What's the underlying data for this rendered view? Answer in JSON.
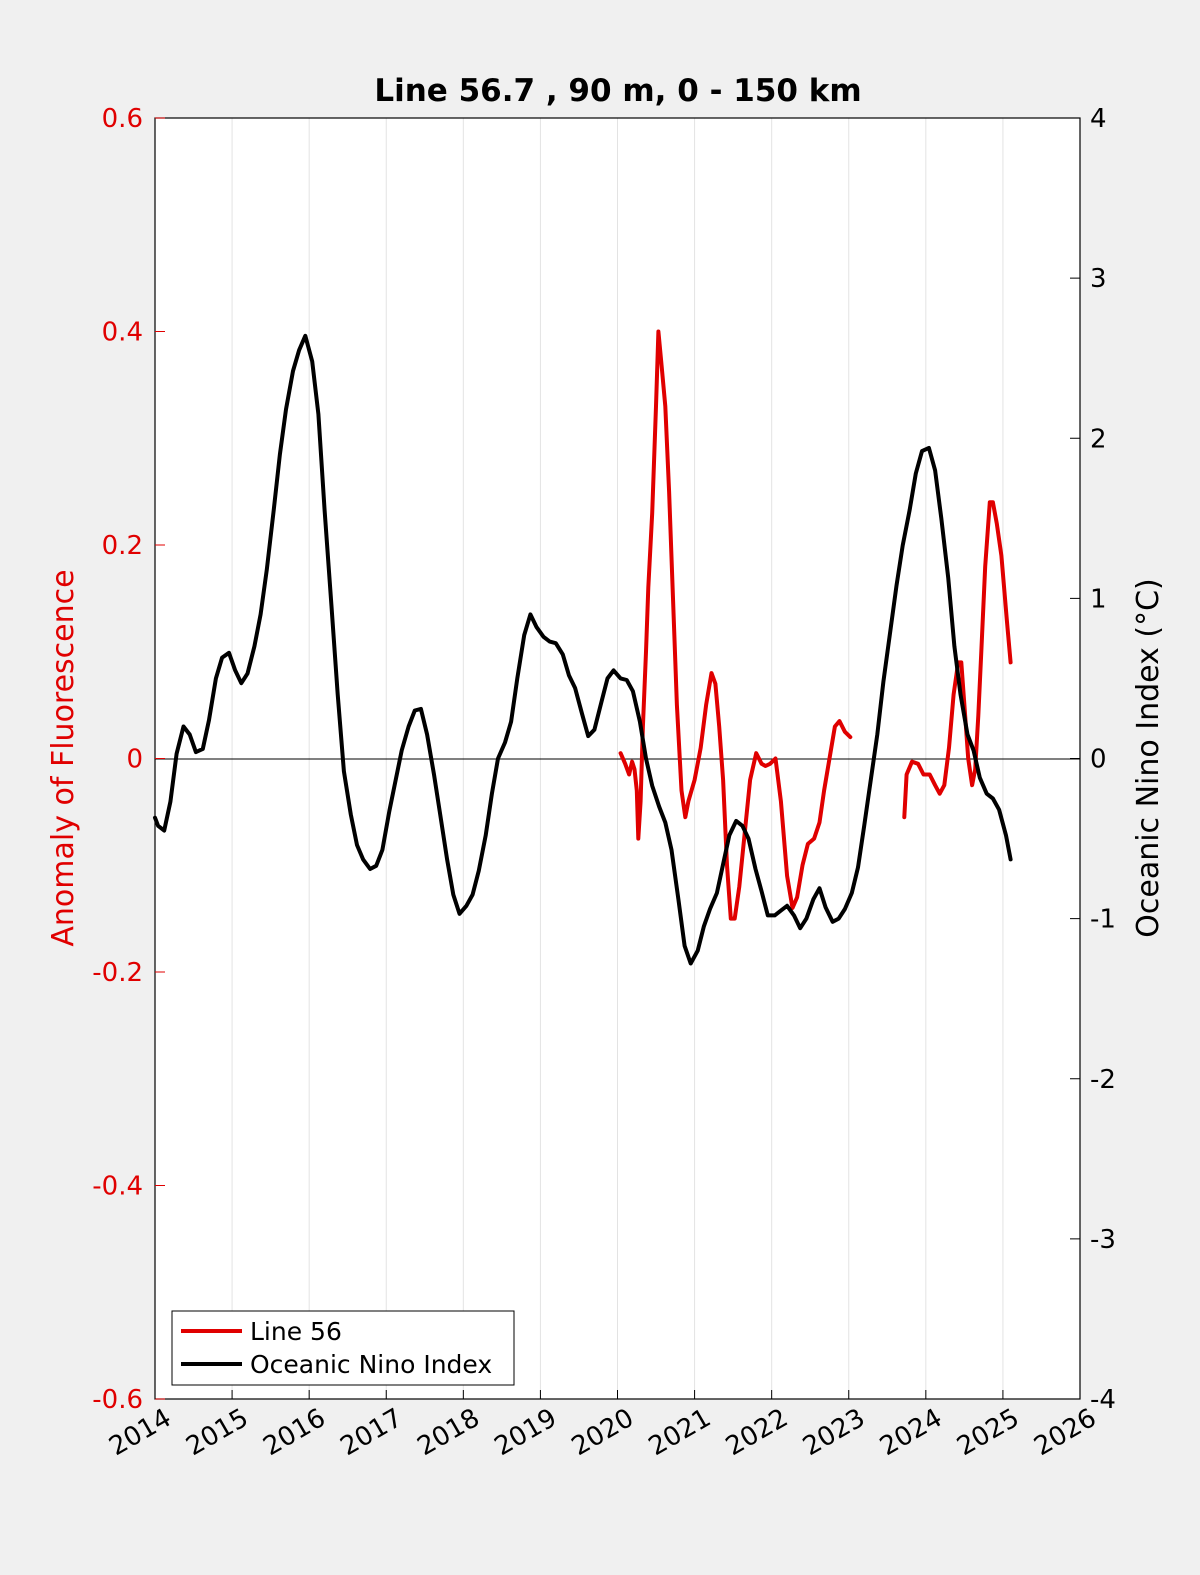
{
  "chart_data": {
    "type": "line",
    "title": "Line 56.7 , 90 m, 0 - 150 km",
    "ylabel_left": "Anomaly of Fluorescence",
    "ylabel_right": "Oceanic Nino Index (°C)",
    "xlabel": "",
    "xlim": [
      2014,
      2026
    ],
    "ylim_left": [
      -0.6,
      0.6
    ],
    "ylim_right": [
      -4,
      4
    ],
    "x_ticks": [
      "2014",
      "2015",
      "2016",
      "2017",
      "2018",
      "2019",
      "2020",
      "2021",
      "2022",
      "2023",
      "2024",
      "2025",
      "2026"
    ],
    "y_ticks_left": [
      "0.6",
      "0.4",
      "0.2",
      "0",
      "-0.2",
      "-0.4",
      "-0.6"
    ],
    "y_ticks_right": [
      "4",
      "3",
      "2",
      "1",
      "0",
      "-1",
      "-2",
      "-3",
      "-4"
    ],
    "grid": "vertical",
    "legend_position": "bottom-left",
    "colors": {
      "line56": "#e00000",
      "oni": "#000000",
      "left_axis": "#e00000",
      "right_axis": "#000000"
    },
    "series": [
      {
        "name": "Line 56",
        "axis": "left",
        "color": "#e00000",
        "segments": [
          [
            [
              2020.04,
              0.005
            ],
            [
              2020.1,
              -0.005
            ],
            [
              2020.15,
              -0.015
            ],
            [
              2020.19,
              -0.003
            ],
            [
              2020.22,
              -0.01
            ],
            [
              2020.25,
              -0.03
            ],
            [
              2020.27,
              -0.075
            ],
            [
              2020.3,
              -0.04
            ],
            [
              2020.33,
              0.03
            ],
            [
              2020.37,
              0.1
            ],
            [
              2020.4,
              0.16
            ],
            [
              2020.45,
              0.23
            ],
            [
              2020.5,
              0.33
            ],
            [
              2020.53,
              0.4
            ],
            [
              2020.57,
              0.37
            ],
            [
              2020.62,
              0.33
            ],
            [
              2020.67,
              0.25
            ],
            [
              2020.72,
              0.15
            ],
            [
              2020.77,
              0.05
            ],
            [
              2020.83,
              -0.03
            ],
            [
              2020.88,
              -0.055
            ],
            [
              2020.92,
              -0.04
            ],
            [
              2021.0,
              -0.02
            ],
            [
              2021.08,
              0.01
            ],
            [
              2021.15,
              0.05
            ],
            [
              2021.22,
              0.08
            ],
            [
              2021.27,
              0.07
            ],
            [
              2021.32,
              0.03
            ],
            [
              2021.37,
              -0.02
            ],
            [
              2021.42,
              -0.1
            ],
            [
              2021.47,
              -0.15
            ],
            [
              2021.52,
              -0.15
            ],
            [
              2021.58,
              -0.12
            ],
            [
              2021.65,
              -0.07
            ],
            [
              2021.72,
              -0.02
            ],
            [
              2021.8,
              0.005
            ],
            [
              2021.87,
              -0.005
            ],
            [
              2021.92,
              -0.007
            ],
            [
              2021.98,
              -0.005
            ],
            [
              2022.05,
              0.0
            ],
            [
              2022.12,
              -0.04
            ],
            [
              2022.2,
              -0.11
            ],
            [
              2022.27,
              -0.14
            ],
            [
              2022.33,
              -0.13
            ],
            [
              2022.4,
              -0.1
            ],
            [
              2022.47,
              -0.08
            ],
            [
              2022.55,
              -0.075
            ],
            [
              2022.62,
              -0.06
            ],
            [
              2022.68,
              -0.03
            ],
            [
              2022.75,
              0.0
            ],
            [
              2022.82,
              0.03
            ],
            [
              2022.88,
              0.035
            ],
            [
              2022.95,
              0.025
            ],
            [
              2023.02,
              0.02
            ]
          ],
          [
            [
              2023.72,
              -0.055
            ],
            [
              2023.75,
              -0.015
            ],
            [
              2023.82,
              -0.003
            ],
            [
              2023.9,
              -0.005
            ],
            [
              2023.97,
              -0.015
            ],
            [
              2024.05,
              -0.015
            ],
            [
              2024.12,
              -0.025
            ],
            [
              2024.18,
              -0.033
            ],
            [
              2024.24,
              -0.025
            ],
            [
              2024.3,
              0.01
            ],
            [
              2024.36,
              0.06
            ],
            [
              2024.42,
              0.09
            ],
            [
              2024.46,
              0.09
            ],
            [
              2024.5,
              0.05
            ],
            [
              2024.55,
              0.0
            ],
            [
              2024.6,
              -0.025
            ],
            [
              2024.64,
              -0.01
            ],
            [
              2024.68,
              0.04
            ],
            [
              2024.72,
              0.1
            ],
            [
              2024.77,
              0.18
            ],
            [
              2024.83,
              0.24
            ],
            [
              2024.87,
              0.24
            ],
            [
              2024.92,
              0.22
            ],
            [
              2024.98,
              0.19
            ],
            [
              2025.05,
              0.13
            ],
            [
              2025.1,
              0.09
            ]
          ]
        ]
      },
      {
        "name": "Oceanic Nino Index",
        "axis": "right",
        "color": "#000000",
        "segments": [
          [
            [
              2014.0,
              -0.37
            ],
            [
              2014.04,
              -0.42
            ],
            [
              2014.12,
              -0.45
            ],
            [
              2014.2,
              -0.27
            ],
            [
              2014.28,
              0.03
            ],
            [
              2014.37,
              0.2
            ],
            [
              2014.45,
              0.15
            ],
            [
              2014.53,
              0.04
            ],
            [
              2014.62,
              0.06
            ],
            [
              2014.7,
              0.24
            ],
            [
              2014.79,
              0.5
            ],
            [
              2014.87,
              0.63
            ],
            [
              2014.96,
              0.66
            ],
            [
              2015.04,
              0.55
            ],
            [
              2015.12,
              0.47
            ],
            [
              2015.2,
              0.53
            ],
            [
              2015.29,
              0.7
            ],
            [
              2015.37,
              0.9
            ],
            [
              2015.45,
              1.18
            ],
            [
              2015.54,
              1.55
            ],
            [
              2015.62,
              1.9
            ],
            [
              2015.7,
              2.18
            ],
            [
              2015.79,
              2.42
            ],
            [
              2015.87,
              2.55
            ],
            [
              2015.95,
              2.64
            ],
            [
              2016.04,
              2.48
            ],
            [
              2016.12,
              2.15
            ],
            [
              2016.2,
              1.55
            ],
            [
              2016.29,
              0.95
            ],
            [
              2016.37,
              0.4
            ],
            [
              2016.45,
              -0.08
            ],
            [
              2016.54,
              -0.35
            ],
            [
              2016.62,
              -0.54
            ],
            [
              2016.7,
              -0.63
            ],
            [
              2016.79,
              -0.69
            ],
            [
              2016.87,
              -0.67
            ],
            [
              2016.95,
              -0.57
            ],
            [
              2017.04,
              -0.33
            ],
            [
              2017.12,
              -0.14
            ],
            [
              2017.2,
              0.05
            ],
            [
              2017.29,
              0.2
            ],
            [
              2017.37,
              0.3
            ],
            [
              2017.45,
              0.31
            ],
            [
              2017.53,
              0.15
            ],
            [
              2017.62,
              -0.1
            ],
            [
              2017.7,
              -0.35
            ],
            [
              2017.79,
              -0.63
            ],
            [
              2017.87,
              -0.85
            ],
            [
              2017.95,
              -0.97
            ],
            [
              2018.04,
              -0.92
            ],
            [
              2018.12,
              -0.85
            ],
            [
              2018.2,
              -0.7
            ],
            [
              2018.29,
              -0.48
            ],
            [
              2018.37,
              -0.22
            ],
            [
              2018.45,
              0.0
            ],
            [
              2018.54,
              0.1
            ],
            [
              2018.62,
              0.23
            ],
            [
              2018.7,
              0.5
            ],
            [
              2018.79,
              0.77
            ],
            [
              2018.87,
              0.9
            ],
            [
              2018.95,
              0.82
            ],
            [
              2019.04,
              0.76
            ],
            [
              2019.12,
              0.73
            ],
            [
              2019.2,
              0.72
            ],
            [
              2019.29,
              0.65
            ],
            [
              2019.37,
              0.52
            ],
            [
              2019.45,
              0.44
            ],
            [
              2019.54,
              0.28
            ],
            [
              2019.62,
              0.14
            ],
            [
              2019.7,
              0.18
            ],
            [
              2019.79,
              0.35
            ],
            [
              2019.87,
              0.5
            ],
            [
              2019.95,
              0.55
            ],
            [
              2020.04,
              0.5
            ],
            [
              2020.12,
              0.49
            ],
            [
              2020.2,
              0.42
            ],
            [
              2020.29,
              0.23
            ],
            [
              2020.37,
              0.0
            ],
            [
              2020.45,
              -0.17
            ],
            [
              2020.54,
              -0.3
            ],
            [
              2020.62,
              -0.4
            ],
            [
              2020.7,
              -0.57
            ],
            [
              2020.79,
              -0.88
            ],
            [
              2020.87,
              -1.17
            ],
            [
              2020.95,
              -1.28
            ],
            [
              2021.04,
              -1.2
            ],
            [
              2021.12,
              -1.05
            ],
            [
              2021.2,
              -0.94
            ],
            [
              2021.29,
              -0.84
            ],
            [
              2021.37,
              -0.66
            ],
            [
              2021.45,
              -0.48
            ],
            [
              2021.54,
              -0.39
            ],
            [
              2021.62,
              -0.42
            ],
            [
              2021.7,
              -0.5
            ],
            [
              2021.79,
              -0.69
            ],
            [
              2021.87,
              -0.83
            ],
            [
              2021.95,
              -0.98
            ],
            [
              2022.04,
              -0.98
            ],
            [
              2022.12,
              -0.95
            ],
            [
              2022.2,
              -0.92
            ],
            [
              2022.29,
              -0.98
            ],
            [
              2022.37,
              -1.06
            ],
            [
              2022.45,
              -1.0
            ],
            [
              2022.54,
              -0.88
            ],
            [
              2022.62,
              -0.81
            ],
            [
              2022.7,
              -0.93
            ],
            [
              2022.79,
              -1.02
            ],
            [
              2022.87,
              -1.0
            ],
            [
              2022.95,
              -0.94
            ],
            [
              2023.04,
              -0.84
            ],
            [
              2023.12,
              -0.68
            ],
            [
              2023.2,
              -0.42
            ],
            [
              2023.29,
              -0.12
            ],
            [
              2023.37,
              0.15
            ],
            [
              2023.45,
              0.48
            ],
            [
              2023.54,
              0.8
            ],
            [
              2023.62,
              1.08
            ],
            [
              2023.7,
              1.33
            ],
            [
              2023.79,
              1.55
            ],
            [
              2023.87,
              1.78
            ],
            [
              2023.95,
              1.92
            ],
            [
              2024.04,
              1.94
            ],
            [
              2024.12,
              1.8
            ],
            [
              2024.2,
              1.5
            ],
            [
              2024.29,
              1.13
            ],
            [
              2024.37,
              0.7
            ],
            [
              2024.45,
              0.4
            ],
            [
              2024.54,
              0.15
            ],
            [
              2024.62,
              0.05
            ],
            [
              2024.7,
              -0.12
            ],
            [
              2024.79,
              -0.22
            ],
            [
              2024.87,
              -0.25
            ],
            [
              2024.95,
              -0.32
            ],
            [
              2025.04,
              -0.48
            ],
            [
              2025.1,
              -0.63
            ]
          ]
        ]
      }
    ]
  }
}
